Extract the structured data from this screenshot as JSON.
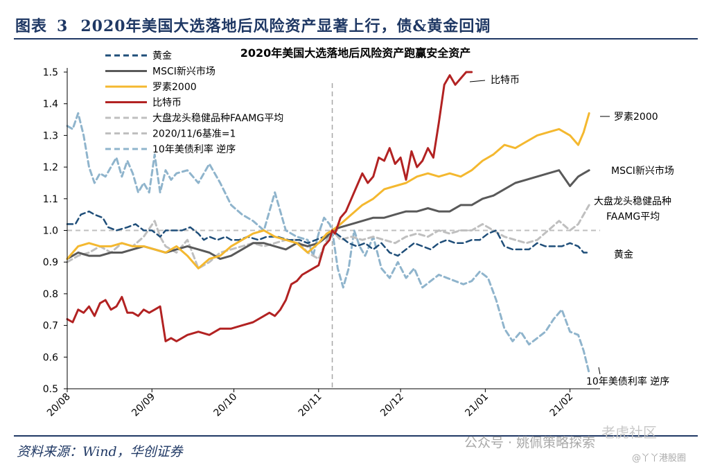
{
  "figure": {
    "label": "图表",
    "number": "3",
    "title": "2020年美国大选落地后风险资产显著上行，债&黄金回调"
  },
  "source": "资料来源：Wind，华创证券",
  "watermark": {
    "main": "公众号 · 姚佩策略探索",
    "faded": "老虎社区",
    "small": "@丫丫港股圈"
  },
  "chart_data": {
    "type": "line",
    "title": "2020年美国大选落地后风险资产跑赢安全资产",
    "xlabel": "",
    "ylabel": "",
    "ylim": [
      0.5,
      1.5
    ],
    "yticks": [
      0.5,
      0.6,
      0.7,
      0.8,
      0.9,
      1.0,
      1.1,
      1.2,
      1.3,
      1.4,
      1.5
    ],
    "ytick_labels": [
      "0.5",
      "0.6",
      "0.7",
      "0.8",
      "0.9",
      "1.0",
      "1.1",
      "1.2",
      "1.3",
      "1.4",
      "1.5"
    ],
    "x_domain": [
      0,
      195
    ],
    "xticks": [
      {
        "value": 0,
        "label": "20/08"
      },
      {
        "value": 31,
        "label": "20/09"
      },
      {
        "value": 61,
        "label": "20/10"
      },
      {
        "value": 92,
        "label": "20/11"
      },
      {
        "value": 122,
        "label": "20/12"
      },
      {
        "value": 153,
        "label": "21/01"
      },
      {
        "value": 184,
        "label": "21/02"
      }
    ],
    "reference_line": {
      "name": "2020/11/6基准=1",
      "y": 1.0,
      "x": 97
    },
    "legend_position": "top-left",
    "series": [
      {
        "name": "黄金",
        "end_label": "黄金",
        "color": "#1f4e79",
        "dash": "dashed",
        "width": 2.5,
        "x": [
          0,
          3,
          5,
          8,
          10,
          13,
          15,
          18,
          22,
          25,
          28,
          31,
          34,
          36,
          38,
          42,
          45,
          48,
          50,
          52,
          55,
          58,
          60,
          63,
          66,
          70,
          73,
          77,
          81,
          85,
          88,
          91,
          94,
          97,
          100,
          103,
          106,
          109,
          112,
          115,
          118,
          121,
          124,
          127,
          130,
          133,
          136,
          139,
          142,
          145,
          148,
          151,
          154,
          157,
          160,
          163,
          166,
          169,
          172,
          175,
          178,
          181,
          184,
          187,
          189,
          191
        ],
        "values": [
          1.02,
          1.02,
          1.05,
          1.06,
          1.05,
          1.04,
          1.01,
          1.0,
          1.01,
          1.02,
          1.0,
          1.0,
          0.98,
          1.0,
          1.0,
          1.0,
          1.01,
          0.99,
          0.97,
          0.98,
          0.97,
          0.98,
          0.97,
          0.97,
          0.98,
          0.97,
          0.98,
          0.98,
          0.97,
          0.97,
          0.96,
          0.97,
          0.98,
          1.0,
          0.98,
          0.96,
          0.95,
          0.96,
          0.94,
          0.96,
          0.93,
          0.92,
          0.94,
          0.96,
          0.95,
          0.94,
          0.96,
          0.97,
          0.96,
          0.96,
          0.97,
          0.97,
          0.99,
          1.0,
          0.95,
          0.94,
          0.94,
          0.94,
          0.96,
          0.95,
          0.95,
          0.95,
          0.96,
          0.95,
          0.93,
          0.93
        ]
      },
      {
        "name": "MSCI新兴市场",
        "end_label": "MSCI新兴市场",
        "color": "#595959",
        "dash": "solid",
        "width": 3,
        "x": [
          0,
          4,
          8,
          12,
          16,
          20,
          24,
          28,
          32,
          36,
          40,
          44,
          48,
          52,
          56,
          60,
          64,
          68,
          72,
          76,
          80,
          84,
          88,
          92,
          95,
          97,
          100,
          104,
          108,
          112,
          116,
          120,
          124,
          128,
          132,
          136,
          140,
          144,
          148,
          152,
          156,
          160,
          164,
          168,
          172,
          176,
          180,
          184,
          187,
          189,
          191
        ],
        "values": [
          0.91,
          0.93,
          0.92,
          0.92,
          0.93,
          0.93,
          0.94,
          0.95,
          0.94,
          0.93,
          0.94,
          0.95,
          0.94,
          0.93,
          0.91,
          0.92,
          0.94,
          0.96,
          0.96,
          0.95,
          0.94,
          0.96,
          0.95,
          0.96,
          0.98,
          1.0,
          1.01,
          1.02,
          1.03,
          1.04,
          1.04,
          1.05,
          1.06,
          1.06,
          1.07,
          1.06,
          1.06,
          1.08,
          1.08,
          1.1,
          1.11,
          1.13,
          1.15,
          1.16,
          1.17,
          1.18,
          1.19,
          1.14,
          1.17,
          1.18,
          1.19
        ]
      },
      {
        "name": "罗素2000",
        "end_label": "罗素2000",
        "color": "#f4b82f",
        "dash": "solid",
        "width": 3,
        "x": [
          0,
          4,
          8,
          12,
          16,
          20,
          24,
          28,
          32,
          36,
          40,
          44,
          48,
          52,
          56,
          60,
          64,
          68,
          72,
          76,
          80,
          84,
          88,
          92,
          95,
          97,
          100,
          104,
          108,
          112,
          116,
          120,
          124,
          128,
          132,
          136,
          140,
          144,
          148,
          152,
          156,
          160,
          164,
          168,
          172,
          176,
          180,
          184,
          187,
          189,
          191
        ],
        "values": [
          0.91,
          0.95,
          0.96,
          0.95,
          0.95,
          0.96,
          0.95,
          0.95,
          0.94,
          0.93,
          0.95,
          0.92,
          0.88,
          0.91,
          0.92,
          0.95,
          0.97,
          0.99,
          1.0,
          0.98,
          0.97,
          0.96,
          0.93,
          0.96,
          0.99,
          1.0,
          1.02,
          1.05,
          1.08,
          1.1,
          1.13,
          1.14,
          1.15,
          1.17,
          1.18,
          1.17,
          1.18,
          1.17,
          1.19,
          1.22,
          1.24,
          1.27,
          1.26,
          1.28,
          1.3,
          1.31,
          1.32,
          1.3,
          1.27,
          1.31,
          1.37
        ]
      },
      {
        "name": "比特币",
        "end_label": "比特币",
        "color": "#b22222",
        "dash": "solid",
        "width": 3,
        "x": [
          0,
          2,
          4,
          6,
          8,
          10,
          12,
          14,
          16,
          18,
          20,
          22,
          24,
          26,
          28,
          30,
          32,
          34,
          36,
          38,
          40,
          44,
          48,
          52,
          56,
          60,
          64,
          68,
          72,
          74,
          76,
          78,
          80,
          82,
          84,
          86,
          88,
          90,
          92,
          94,
          96,
          97,
          98,
          100,
          102,
          104,
          106,
          108,
          110,
          112,
          114,
          116,
          118,
          120,
          122,
          124,
          126,
          128,
          130,
          132,
          134,
          136,
          138,
          140,
          142,
          144,
          146,
          148
        ],
        "values": [
          0.72,
          0.71,
          0.75,
          0.74,
          0.76,
          0.73,
          0.77,
          0.78,
          0.75,
          0.76,
          0.79,
          0.74,
          0.74,
          0.73,
          0.75,
          0.74,
          0.75,
          0.76,
          0.65,
          0.66,
          0.65,
          0.67,
          0.68,
          0.67,
          0.69,
          0.69,
          0.7,
          0.71,
          0.73,
          0.74,
          0.73,
          0.75,
          0.78,
          0.83,
          0.84,
          0.86,
          0.87,
          0.88,
          0.89,
          0.95,
          0.97,
          1.0,
          0.99,
          1.04,
          1.06,
          1.1,
          1.14,
          1.18,
          1.15,
          1.17,
          1.23,
          1.22,
          1.26,
          1.21,
          1.23,
          1.16,
          1.25,
          1.2,
          1.22,
          1.26,
          1.23,
          1.34,
          1.46,
          1.49,
          1.46,
          1.48,
          1.5,
          1.5
        ]
      },
      {
        "name": "大盘龙头稳健品种FAAMG平均",
        "end_label": "大盘龙头稳健品种FAAMG平均",
        "color": "#bfbfbf",
        "dash": "dashed",
        "width": 3,
        "x": [
          0,
          4,
          8,
          12,
          16,
          20,
          24,
          28,
          32,
          34,
          36,
          40,
          44,
          48,
          52,
          56,
          60,
          64,
          68,
          72,
          76,
          80,
          84,
          88,
          92,
          95,
          97,
          100,
          104,
          108,
          112,
          116,
          120,
          124,
          128,
          132,
          136,
          140,
          144,
          148,
          152,
          156,
          160,
          164,
          168,
          172,
          176,
          180,
          184,
          187,
          189,
          191
        ],
        "values": [
          0.9,
          0.92,
          0.93,
          0.95,
          0.93,
          0.96,
          0.95,
          0.98,
          1.03,
          0.98,
          0.95,
          0.93,
          0.97,
          0.88,
          0.9,
          0.93,
          0.94,
          0.95,
          0.96,
          0.95,
          0.96,
          0.97,
          0.97,
          0.93,
          0.91,
          0.97,
          1.0,
          0.97,
          0.98,
          0.97,
          0.98,
          0.97,
          0.96,
          0.98,
          0.99,
          0.98,
          1.0,
          0.99,
          1.0,
          1.0,
          1.02,
          1.0,
          0.98,
          0.97,
          0.96,
          0.97,
          1.0,
          1.03,
          1.0,
          1.02,
          1.05,
          1.08
        ]
      },
      {
        "name": "10年美债利率 逆序",
        "end_label": "10年美债利率 逆序",
        "color": "#8fb4cc",
        "dash": "dashed",
        "width": 3,
        "x": [
          0,
          2,
          4,
          6,
          8,
          10,
          12,
          14,
          16,
          18,
          20,
          22,
          24,
          26,
          28,
          30,
          32,
          34,
          36,
          38,
          40,
          44,
          48,
          52,
          56,
          60,
          64,
          68,
          72,
          76,
          80,
          84,
          88,
          90,
          92,
          94,
          96,
          97,
          99,
          101,
          103,
          105,
          107,
          109,
          112,
          115,
          118,
          121,
          124,
          127,
          130,
          133,
          136,
          139,
          142,
          145,
          148,
          151,
          154,
          157,
          160,
          163,
          166,
          169,
          172,
          175,
          178,
          181,
          184,
          187,
          189,
          191
        ],
        "values": [
          1.33,
          1.32,
          1.37,
          1.3,
          1.2,
          1.15,
          1.18,
          1.17,
          1.2,
          1.23,
          1.17,
          1.22,
          1.18,
          1.12,
          1.15,
          1.12,
          1.24,
          1.12,
          1.19,
          1.16,
          1.18,
          1.19,
          1.15,
          1.21,
          1.15,
          1.08,
          1.05,
          1.03,
          1.0,
          1.12,
          1.0,
          0.98,
          0.97,
          0.92,
          0.99,
          1.04,
          1.02,
          1.0,
          0.88,
          0.82,
          0.88,
          1.0,
          0.95,
          0.92,
          0.98,
          0.88,
          0.85,
          0.9,
          0.85,
          0.88,
          0.82,
          0.84,
          0.86,
          0.85,
          0.84,
          0.83,
          0.84,
          0.87,
          0.85,
          0.78,
          0.69,
          0.65,
          0.68,
          0.64,
          0.66,
          0.68,
          0.72,
          0.75,
          0.68,
          0.67,
          0.62,
          0.55
        ]
      }
    ],
    "legend_extra": [
      {
        "name": "2020/11/6基准=1",
        "color": "#bfbfbf",
        "dash": "dashed"
      }
    ]
  }
}
